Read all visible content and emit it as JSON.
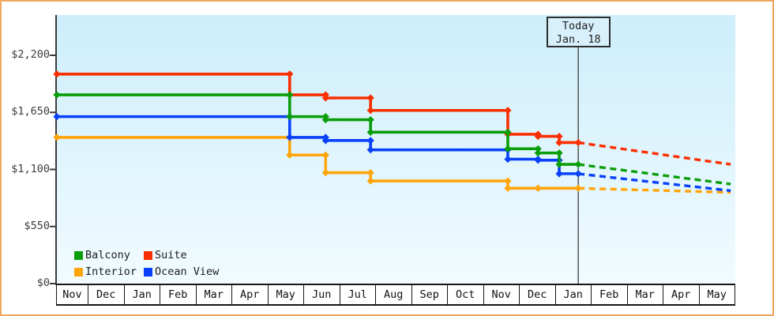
{
  "today_box": {
    "line1": "Today",
    "line2": "Jan. 18"
  },
  "legend": {
    "items": [
      {
        "label": "Balcony",
        "color": "#0b9e0b"
      },
      {
        "label": "Suite",
        "color": "#fa2f00"
      },
      {
        "label": "Interior",
        "color": "#ffa50a"
      },
      {
        "label": "Ocean View",
        "color": "#0940fa"
      }
    ]
  },
  "chart_data": {
    "type": "line",
    "line_style": "step-after",
    "title": "",
    "x_axis": {
      "unit": "month",
      "labels": [
        "Nov",
        "Dec",
        "Jan",
        "Feb",
        "Mar",
        "Apr",
        "May",
        "Jun",
        "Jul",
        "Aug",
        "Sep",
        "Oct",
        "Nov",
        "Dec",
        "Jan",
        "Feb",
        "Mar",
        "Apr",
        "May"
      ]
    },
    "y_axis": {
      "ticks": [
        {
          "label": "$0",
          "value": 0
        },
        {
          "label": "$550",
          "value": 550
        },
        {
          "label": "$1,100",
          "value": 1100
        },
        {
          "label": "$1,650",
          "value": 1650
        },
        {
          "label": "$2,200",
          "value": 2200
        }
      ],
      "range": [
        0,
        2200
      ],
      "grid": false
    },
    "today": {
      "label_line1": "Today",
      "label_line2": "Jan. 18",
      "month_pos": 14.63
    },
    "projection_end_month_pos": 18.87,
    "legend_position": "bottom-left-inside",
    "series": [
      {
        "name": "Interior",
        "color": "#ffa50a",
        "points": [
          {
            "date": "Nov 4",
            "month_pos": 0.12,
            "price": 1409
          },
          {
            "date": "May 19",
            "month_pos": 6.6,
            "price": 1239
          },
          {
            "date": "Jun 18",
            "month_pos": 7.6,
            "price": 1069
          },
          {
            "date": "Jul 26",
            "month_pos": 8.85,
            "price": 989
          },
          {
            "date": "Nov 19",
            "month_pos": 12.67,
            "price": 919
          },
          {
            "date": "Dec 15",
            "month_pos": 13.51,
            "price": 919
          },
          {
            "date": "Jan 18",
            "month_pos": 14.63,
            "price": 919
          }
        ],
        "projected_price": 879
      },
      {
        "name": "Ocean View",
        "color": "#0940fa",
        "points": [
          {
            "date": "Nov 4",
            "month_pos": 0.12,
            "price": 1609
          },
          {
            "date": "May 19",
            "month_pos": 6.6,
            "price": 1409
          },
          {
            "date": "Jun 18",
            "month_pos": 7.6,
            "price": 1379
          },
          {
            "date": "Jul 26",
            "month_pos": 8.85,
            "price": 1289
          },
          {
            "date": "Nov 19",
            "month_pos": 12.67,
            "price": 1199
          },
          {
            "date": "Dec 15",
            "month_pos": 13.51,
            "price": 1189
          },
          {
            "date": "Jan 3",
            "month_pos": 14.1,
            "price": 1059
          },
          {
            "date": "Jan 18",
            "month_pos": 14.63,
            "price": 1059
          }
        ],
        "projected_price": 895
      },
      {
        "name": "Suite",
        "color": "#fa2f00",
        "points": [
          {
            "date": "Nov 4",
            "month_pos": 0.12,
            "price": 2019
          },
          {
            "date": "May 19",
            "month_pos": 6.6,
            "price": 1819
          },
          {
            "date": "Jun 18",
            "month_pos": 7.6,
            "price": 1789
          },
          {
            "date": "Jul 26",
            "month_pos": 8.85,
            "price": 1669
          },
          {
            "date": "Nov 19",
            "month_pos": 12.67,
            "price": 1439
          },
          {
            "date": "Dec 15",
            "month_pos": 13.51,
            "price": 1419
          },
          {
            "date": "Jan 3",
            "month_pos": 14.1,
            "price": 1359
          },
          {
            "date": "Jan 18",
            "month_pos": 14.63,
            "price": 1359
          }
        ],
        "projected_price": 1149
      },
      {
        "name": "Balcony",
        "color": "#0b9e0b",
        "points": [
          {
            "date": "Nov 4",
            "month_pos": 0.12,
            "price": 1819
          },
          {
            "date": "May 19",
            "month_pos": 6.6,
            "price": 1609
          },
          {
            "date": "Jun 18",
            "month_pos": 7.6,
            "price": 1579
          },
          {
            "date": "Jul 26",
            "month_pos": 8.85,
            "price": 1459
          },
          {
            "date": "Nov 19",
            "month_pos": 12.67,
            "price": 1299
          },
          {
            "date": "Dec 15",
            "month_pos": 13.51,
            "price": 1259
          },
          {
            "date": "Jan 3",
            "month_pos": 14.1,
            "price": 1149
          },
          {
            "date": "Jan 18",
            "month_pos": 14.63,
            "price": 1149
          }
        ],
        "projected_price": 959
      }
    ],
    "colors": {
      "plot_bg_top": "#cdeefb",
      "plot_bg_bottom": "#f1fbff",
      "frame_border": "#f0a65c",
      "axis": "#3a3a3a",
      "today_line": "#555555",
      "band_border": "#161616",
      "page_background": "#ffffff"
    }
  }
}
